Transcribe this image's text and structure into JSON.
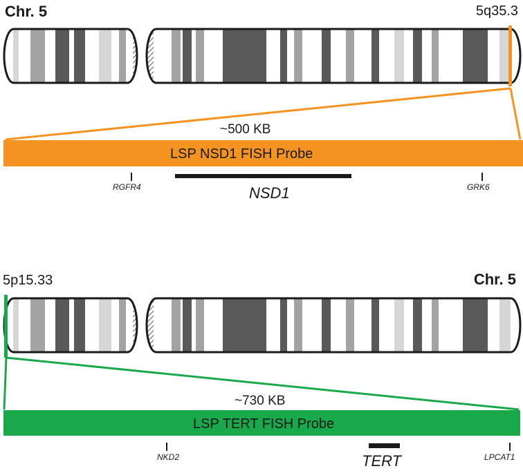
{
  "colors": {
    "nsd1_probe": "#f4931f",
    "tert_probe": "#19a84a",
    "band_dark": "#595959",
    "band_mid": "#a3a3a3",
    "band_light": "#d6d6d6",
    "outline": "#1a1a1a"
  },
  "panels": [
    {
      "chromosome_label": "Chr. 5",
      "band_label": "5q35.3",
      "size_label": "~500 KB",
      "probe_label": "LSP NSD1 FISH Probe",
      "target_gene": "NSD1",
      "flanking_genes": [
        "RGFR4",
        "GRK6"
      ]
    },
    {
      "chromosome_label": "Chr. 5",
      "band_label": "5p15.33",
      "size_label": "~730 KB",
      "probe_label": "LSP TERT FISH Probe",
      "target_gene": "TERT",
      "flanking_genes": [
        "NKD2",
        "LPCAT1"
      ]
    }
  ]
}
